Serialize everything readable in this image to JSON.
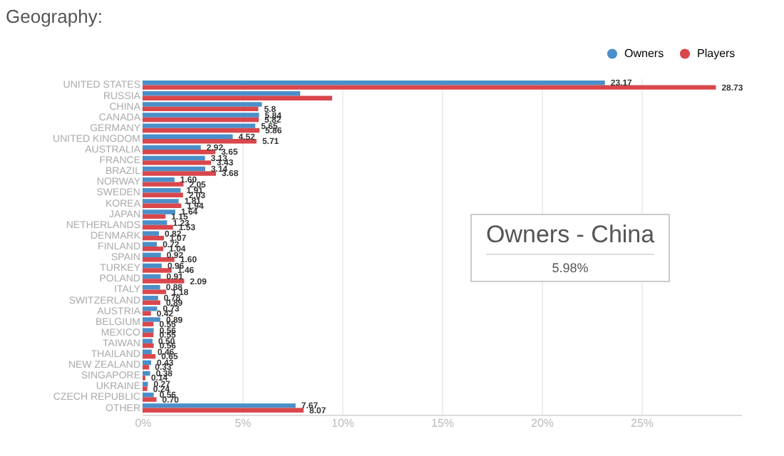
{
  "chart_data": {
    "type": "bar",
    "orientation": "horizontal",
    "title": "Geography:",
    "categories": [
      "UNITED STATES",
      "RUSSIA",
      "CHINA",
      "CANADA",
      "GERMANY",
      "UNITED KINGDOM",
      "AUSTRALIA",
      "FRANCE",
      "BRAZIL",
      "NORWAY",
      "SWEDEN",
      "KOREA",
      "JAPAN",
      "NETHERLANDS",
      "DENMARK",
      "FINLAND",
      "SPAIN",
      "TURKEY",
      "POLAND",
      "ITALY",
      "SWITZERLAND",
      "AUSTRIA",
      "BELGIUM",
      "MEXICO",
      "TAIWAN",
      "THAILAND",
      "NEW ZEALAND",
      "SINGAPORE",
      "UKRAINE",
      "CZECH REPUBLIC",
      "OTHER"
    ],
    "series": [
      {
        "name": "Owners",
        "color": "#4a8fc9",
        "values": [
          23.17,
          7.9,
          5.98,
          5.84,
          5.65,
          4.52,
          2.92,
          3.13,
          3.14,
          1.6,
          1.91,
          1.81,
          1.64,
          1.23,
          0.82,
          0.72,
          0.92,
          0.96,
          0.91,
          0.88,
          0.78,
          0.73,
          0.89,
          0.56,
          0.5,
          0.46,
          0.43,
          0.38,
          0.27,
          0.56,
          7.67
        ],
        "value_labels": [
          "23.17",
          null,
          null,
          "5.84",
          "5.65",
          "4.52",
          "2.92",
          "3.13",
          "3.14",
          "1.60",
          "1.91",
          "1.81",
          "1.64",
          "1.23",
          "0.82",
          "0.72",
          "0.92",
          "0.96",
          "0.91",
          "0.88",
          "0.78",
          "0.73",
          "0.89",
          "0.56",
          "0.50",
          "0.46",
          "0.43",
          "0.38",
          "0.27",
          "0.56",
          "7.67"
        ]
      },
      {
        "name": "Players",
        "color": "#d9474c",
        "values": [
          28.73,
          9.5,
          5.8,
          5.82,
          5.86,
          5.71,
          3.65,
          3.43,
          3.68,
          2.05,
          2.03,
          1.94,
          1.15,
          1.53,
          1.07,
          1.04,
          1.6,
          1.46,
          2.09,
          1.18,
          0.89,
          0.42,
          0.55,
          0.55,
          0.56,
          0.65,
          0.33,
          0.14,
          0.24,
          0.7,
          8.07
        ],
        "value_labels": [
          "28.73",
          null,
          "5.8",
          "5.82",
          "5.86",
          "5.71",
          "3.65",
          "3.43",
          "3.68",
          "2.05",
          "2.03",
          "1.94",
          "1.15",
          "1.53",
          "1.07",
          "1.04",
          "1.60",
          "1.46",
          "2.09",
          "1.18",
          "0.89",
          "0.42",
          "0.55",
          "0.55",
          "0.56",
          "0.65",
          "0.33",
          "0.14",
          "0.24",
          "0.70",
          "8.07"
        ]
      }
    ],
    "xlim": [
      0,
      30
    ],
    "xticks": [
      {
        "value": 0,
        "label": "0%"
      },
      {
        "value": 5,
        "label": "5%"
      },
      {
        "value": 10,
        "label": "10%"
      },
      {
        "value": 15,
        "label": "15%"
      },
      {
        "value": 20,
        "label": "20%"
      },
      {
        "value": 25,
        "label": "25%"
      }
    ],
    "grid": "x",
    "legend": "top right",
    "annotations": [
      "Owners - China",
      "5.98%"
    ]
  }
}
